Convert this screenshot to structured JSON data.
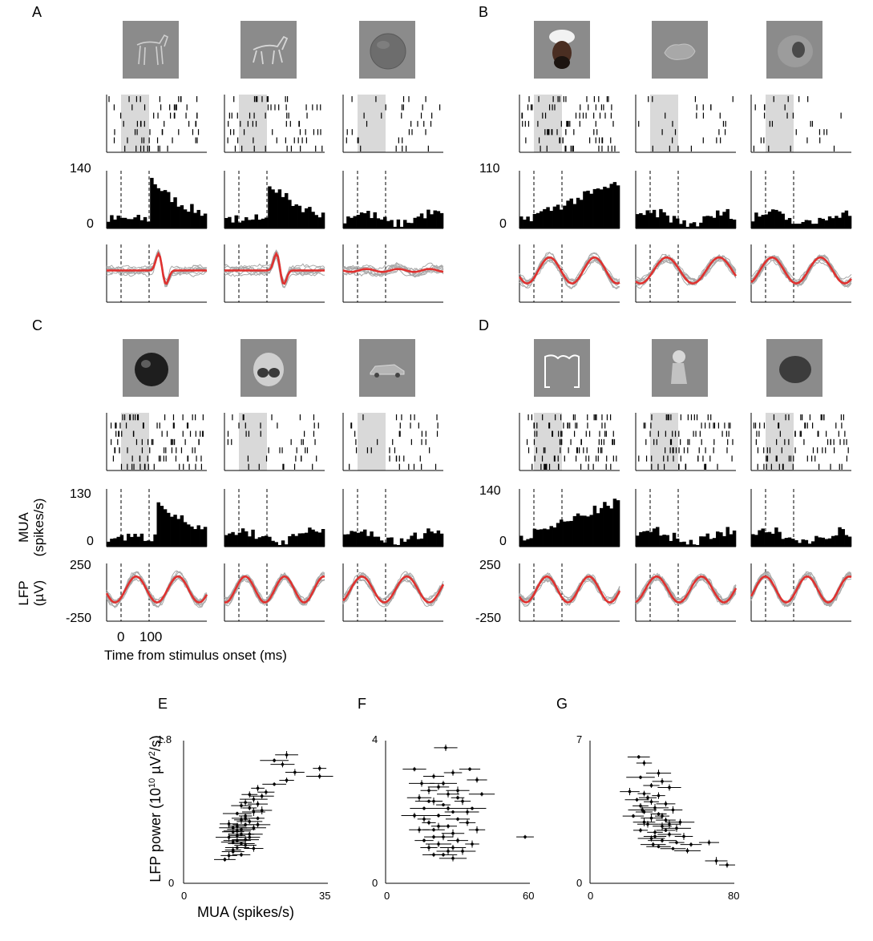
{
  "panels": [
    {
      "label": "A",
      "psth_ymax": "140",
      "psth_ymin": "0",
      "stimuli": [
        "horse-statue",
        "horse",
        "sphere"
      ]
    },
    {
      "label": "B",
      "psth_ymax": "110",
      "psth_ymin": "0",
      "stimuli": [
        "man-in-turban",
        "crumpled-object",
        "shell"
      ]
    },
    {
      "label": "C",
      "psth_ymax": "130",
      "psth_ymin": "0",
      "lfp_ymax": "250",
      "lfp_ymin": "-250",
      "stimuli": [
        "apple",
        "masked-face",
        "car"
      ]
    },
    {
      "label": "D",
      "psth_ymax": "140",
      "psth_ymin": "0",
      "lfp_ymax": "250",
      "lfp_ymin": "-250",
      "stimuli": [
        "bracket-shape",
        "figurine",
        "stone"
      ]
    }
  ],
  "axis_labels": {
    "mua_line1": "MUA",
    "mua_line2": "(spikes/s)",
    "lfp_line1": "LFP",
    "lfp_line2": "(µV)",
    "time_tick0": "0",
    "time_tick100": "100",
    "time_label": "Time from stimulus onset (ms)",
    "scatter_xlabel": "MUA (spikes/s)",
    "scatter_ylabel_pre": "LFP power (10",
    "scatter_ylabel_exp": "10",
    "scatter_ylabel_mid": " µV",
    "scatter_ylabel_exp2": "2",
    "scatter_ylabel_post": "/s)"
  },
  "scatter_panels": [
    {
      "label": "E",
      "ymax": "1.8",
      "ymin": "0",
      "xmin": "0",
      "xmax": "35"
    },
    {
      "label": "F",
      "ymax": "4",
      "ymin": "0",
      "xmin": "0",
      "xmax": "60"
    },
    {
      "label": "G",
      "ymax": "7",
      "ymin": "0",
      "xmin": "0",
      "xmax": "80"
    }
  ],
  "chart_data": [
    {
      "type": "scatter",
      "panel": "E",
      "xlabel": "MUA (spikes/s)",
      "ylabel": "LFP power (10^10 µV^2/s)",
      "xlim": [
        0,
        35
      ],
      "ylim": [
        0,
        1.8
      ],
      "points": [
        [
          10,
          0.3
        ],
        [
          11,
          0.35
        ],
        [
          12,
          0.4
        ],
        [
          13,
          0.45
        ],
        [
          14,
          0.5
        ],
        [
          12,
          0.52
        ],
        [
          15,
          0.55
        ],
        [
          11,
          0.58
        ],
        [
          13,
          0.6
        ],
        [
          16,
          0.62
        ],
        [
          12,
          0.65
        ],
        [
          14,
          0.68
        ],
        [
          17,
          0.7
        ],
        [
          13,
          0.72
        ],
        [
          15,
          0.74
        ],
        [
          11,
          0.75
        ],
        [
          16,
          0.78
        ],
        [
          14,
          0.8
        ],
        [
          18,
          0.82
        ],
        [
          15,
          0.85
        ],
        [
          13,
          0.88
        ],
        [
          17,
          0.9
        ],
        [
          16,
          0.95
        ],
        [
          14,
          0.98
        ],
        [
          18,
          1.0
        ],
        [
          15,
          1.02
        ],
        [
          17,
          1.06
        ],
        [
          19,
          1.1
        ],
        [
          16,
          1.12
        ],
        [
          20,
          1.15
        ],
        [
          18,
          1.2
        ],
        [
          22,
          1.25
        ],
        [
          25,
          1.3
        ],
        [
          27,
          1.4
        ],
        [
          33,
          1.35
        ],
        [
          33,
          1.45
        ],
        [
          24,
          1.5
        ],
        [
          22,
          1.55
        ],
        [
          25,
          1.62
        ],
        [
          12,
          0.42
        ],
        [
          14,
          0.36
        ],
        [
          19,
          0.92
        ],
        [
          13,
          0.66
        ],
        [
          15,
          0.48
        ],
        [
          16,
          0.58
        ],
        [
          12,
          0.7
        ],
        [
          17,
          0.44
        ],
        [
          14,
          0.62
        ],
        [
          13,
          0.54
        ],
        [
          15,
          0.82
        ],
        [
          18,
          0.74
        ]
      ]
    },
    {
      "type": "scatter",
      "panel": "F",
      "xlabel": "MUA (spikes/s)",
      "ylabel": "LFP power (10^10 µV^2/s)",
      "xlim": [
        0,
        60
      ],
      "ylim": [
        0,
        4
      ],
      "points": [
        [
          25,
          3.8
        ],
        [
          12,
          3.2
        ],
        [
          20,
          3.0
        ],
        [
          28,
          3.1
        ],
        [
          35,
          3.2
        ],
        [
          38,
          2.9
        ],
        [
          15,
          2.8
        ],
        [
          22,
          2.7
        ],
        [
          30,
          2.6
        ],
        [
          18,
          2.6
        ],
        [
          26,
          2.5
        ],
        [
          40,
          2.5
        ],
        [
          14,
          2.4
        ],
        [
          20,
          2.3
        ],
        [
          32,
          2.3
        ],
        [
          24,
          2.2
        ],
        [
          16,
          2.1
        ],
        [
          28,
          2.0
        ],
        [
          36,
          2.1
        ],
        [
          12,
          1.9
        ],
        [
          22,
          1.9
        ],
        [
          30,
          1.8
        ],
        [
          18,
          1.7
        ],
        [
          26,
          1.6
        ],
        [
          34,
          1.7
        ],
        [
          14,
          1.5
        ],
        [
          20,
          1.5
        ],
        [
          28,
          1.4
        ],
        [
          38,
          1.5
        ],
        [
          24,
          1.3
        ],
        [
          16,
          1.2
        ],
        [
          30,
          1.2
        ],
        [
          22,
          1.1
        ],
        [
          36,
          1.1
        ],
        [
          18,
          1.0
        ],
        [
          26,
          0.9
        ],
        [
          32,
          0.9
        ],
        [
          20,
          0.8
        ],
        [
          28,
          0.7
        ],
        [
          58,
          1.3
        ],
        [
          24,
          2.8
        ],
        [
          18,
          2.3
        ],
        [
          30,
          2.4
        ],
        [
          22,
          1.6
        ],
        [
          26,
          2.1
        ],
        [
          16,
          1.8
        ],
        [
          34,
          2.0
        ],
        [
          20,
          1.3
        ],
        [
          28,
          1.0
        ],
        [
          24,
          0.8
        ]
      ]
    },
    {
      "type": "scatter",
      "panel": "G",
      "xlabel": "MUA (spikes/s)",
      "ylabel": "LFP power (10^10 µV^2/s)",
      "xlim": [
        0,
        80
      ],
      "ylim": [
        0,
        7
      ],
      "points": [
        [
          27,
          6.2
        ],
        [
          30,
          5.9
        ],
        [
          38,
          5.4
        ],
        [
          28,
          5.2
        ],
        [
          40,
          5.0
        ],
        [
          34,
          4.8
        ],
        [
          44,
          4.7
        ],
        [
          22,
          4.5
        ],
        [
          30,
          4.4
        ],
        [
          38,
          4.3
        ],
        [
          26,
          4.1
        ],
        [
          34,
          4.0
        ],
        [
          42,
          3.9
        ],
        [
          28,
          3.8
        ],
        [
          36,
          3.7
        ],
        [
          46,
          3.6
        ],
        [
          30,
          3.5
        ],
        [
          38,
          3.4
        ],
        [
          24,
          3.3
        ],
        [
          34,
          3.2
        ],
        [
          42,
          3.1
        ],
        [
          50,
          3.0
        ],
        [
          32,
          2.9
        ],
        [
          40,
          2.8
        ],
        [
          48,
          2.7
        ],
        [
          28,
          2.6
        ],
        [
          36,
          2.5
        ],
        [
          44,
          2.4
        ],
        [
          52,
          2.3
        ],
        [
          34,
          2.2
        ],
        [
          40,
          2.1
        ],
        [
          48,
          2.0
        ],
        [
          56,
          1.9
        ],
        [
          66,
          2.0
        ],
        [
          38,
          1.8
        ],
        [
          46,
          1.7
        ],
        [
          54,
          1.6
        ],
        [
          70,
          1.1
        ],
        [
          76,
          0.9
        ],
        [
          30,
          3.0
        ],
        [
          36,
          2.3
        ],
        [
          32,
          4.2
        ],
        [
          40,
          3.3
        ],
        [
          44,
          2.9
        ],
        [
          35,
          1.9
        ],
        [
          29,
          3.6
        ],
        [
          42,
          2.6
        ]
      ]
    }
  ]
}
